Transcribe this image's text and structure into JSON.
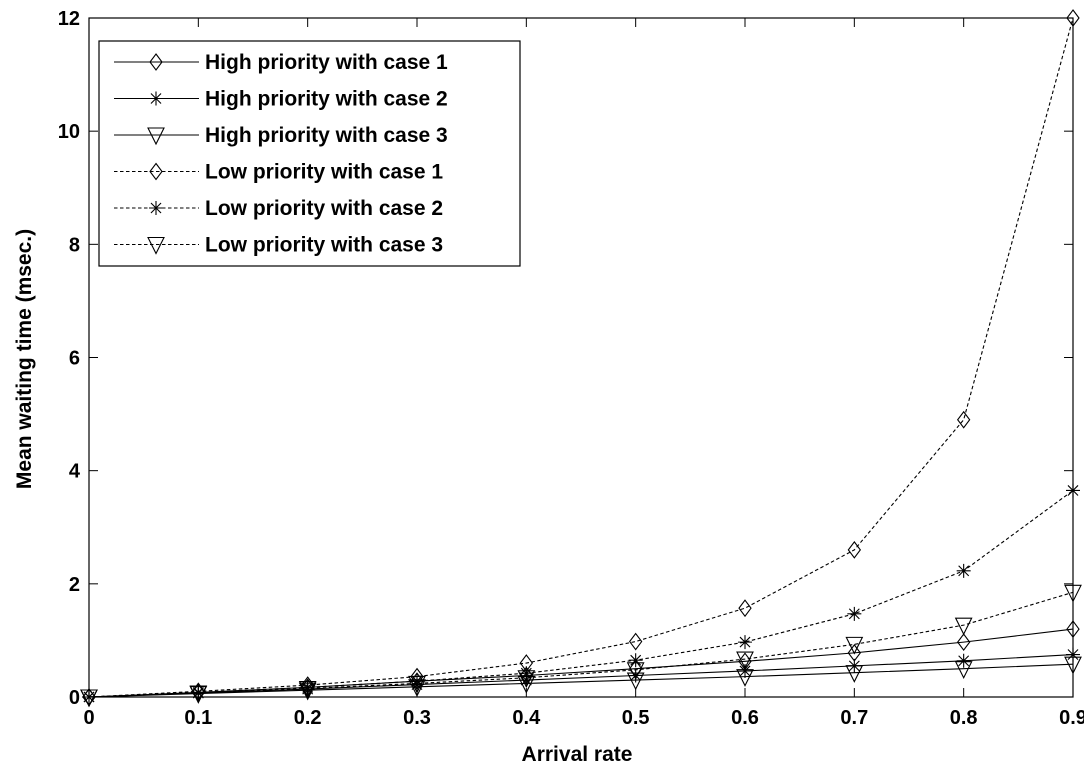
{
  "chart_data": {
    "type": "line",
    "xlabel": "Arrival rate",
    "ylabel": "Mean waiting time (msec.)",
    "xlim": [
      0,
      0.9
    ],
    "ylim": [
      0,
      12
    ],
    "xticks": [
      "0",
      "0.1",
      "0.2",
      "0.3",
      "0.4",
      "0.5",
      "0.6",
      "0.7",
      "0.8",
      "0.9"
    ],
    "yticks": [
      "0",
      "2",
      "4",
      "6",
      "8",
      "10",
      "12"
    ],
    "grid": false,
    "legend_position": "top-left",
    "x": [
      0,
      0.1,
      0.2,
      0.3,
      0.4,
      0.5,
      0.6,
      0.7,
      0.8,
      0.9
    ],
    "series": [
      {
        "name": "High priority with case 1",
        "line": "solid",
        "marker": "diamond",
        "values": [
          0,
          0.08,
          0.17,
          0.28,
          0.38,
          0.5,
          0.63,
          0.78,
          0.97,
          1.2
        ]
      },
      {
        "name": "High priority with case 2",
        "line": "solid",
        "marker": "star",
        "values": [
          0,
          0.07,
          0.14,
          0.22,
          0.3,
          0.38,
          0.46,
          0.55,
          0.64,
          0.75
        ]
      },
      {
        "name": "High priority with case 3",
        "line": "solid",
        "marker": "triangle-down",
        "values": [
          0,
          0.06,
          0.12,
          0.18,
          0.24,
          0.3,
          0.36,
          0.43,
          0.5,
          0.58
        ]
      },
      {
        "name": "Low priority with case 1",
        "line": "dashed",
        "marker": "diamond",
        "values": [
          0,
          0.1,
          0.21,
          0.36,
          0.6,
          0.98,
          1.57,
          2.6,
          4.9,
          12.0
        ]
      },
      {
        "name": "Low priority with case 2",
        "line": "dashed",
        "marker": "star",
        "values": [
          0,
          0.08,
          0.17,
          0.28,
          0.42,
          0.65,
          0.97,
          1.47,
          2.23,
          3.65
        ]
      },
      {
        "name": "Low priority with case 3",
        "line": "dashed",
        "marker": "triangle-down",
        "values": [
          0,
          0.07,
          0.15,
          0.24,
          0.34,
          0.48,
          0.67,
          0.93,
          1.27,
          1.85
        ]
      }
    ]
  },
  "colors": {
    "line": "#000000",
    "background": "#ffffff"
  }
}
